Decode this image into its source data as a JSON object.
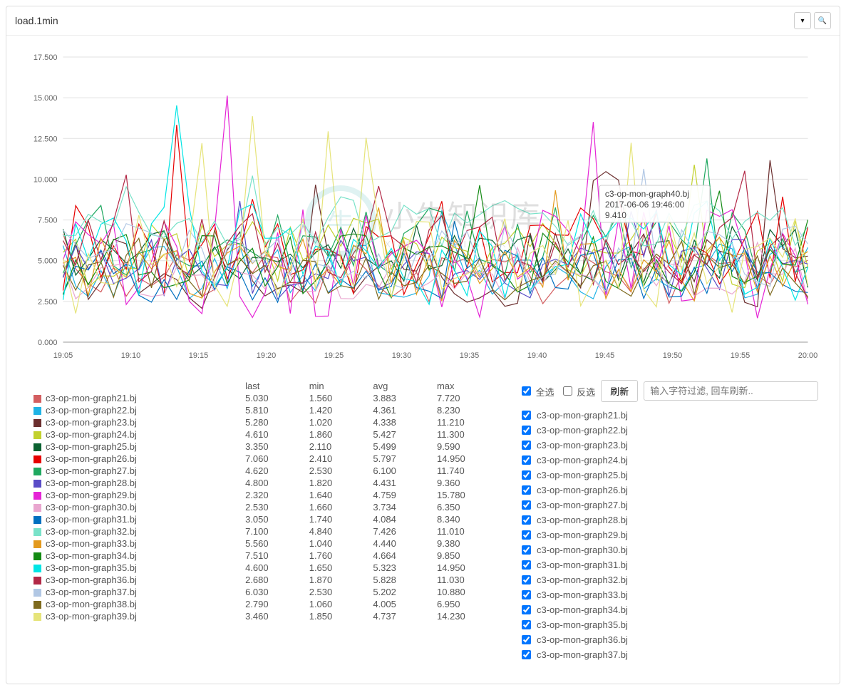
{
  "panel": {
    "title": "load.1min"
  },
  "chart": {
    "type": "line",
    "ylim": [
      0,
      17.5
    ],
    "ytick_step": 2.5,
    "yticks": [
      "0.000",
      "2.500",
      "5.000",
      "7.500",
      "10.000",
      "12.500",
      "15.000",
      "17.500"
    ],
    "xcats": [
      "19:05",
      "19:10",
      "19:15",
      "19:20",
      "19:25",
      "19:30",
      "19:35",
      "19:40",
      "19:45",
      "19:50",
      "19:55",
      "20:00"
    ],
    "grid_color": "#e0e0e0",
    "background_color": "#ffffff",
    "axis_font_size": 11,
    "watermark_title": "小牛知识库",
    "watermark_sub": "XIAO NIU ZHI SHI KU",
    "tooltip": {
      "line1": "c3-op-mon-graph40.bj",
      "line2": "2017-06-06 19:46:00",
      "line3": "9.410"
    }
  },
  "stats": {
    "headers": [
      "",
      "last",
      "min",
      "avg",
      "max"
    ],
    "rows": [
      {
        "color": "#d35e60",
        "name": "c3-op-mon-graph21.bj",
        "last": "5.030",
        "min": "1.560",
        "avg": "3.883",
        "max": "7.720"
      },
      {
        "color": "#1fb3e5",
        "name": "c3-op-mon-graph22.bj",
        "last": "5.810",
        "min": "1.420",
        "avg": "4.361",
        "max": "8.230"
      },
      {
        "color": "#6b2e2e",
        "name": "c3-op-mon-graph23.bj",
        "last": "5.280",
        "min": "1.020",
        "avg": "4.338",
        "max": "11.210"
      },
      {
        "color": "#c2d12e",
        "name": "c3-op-mon-graph24.bj",
        "last": "4.610",
        "min": "1.860",
        "avg": "5.427",
        "max": "11.300"
      },
      {
        "color": "#0b6231",
        "name": "c3-op-mon-graph25.bj",
        "last": "3.350",
        "min": "2.110",
        "avg": "5.499",
        "max": "9.590"
      },
      {
        "color": "#e60000",
        "name": "c3-op-mon-graph26.bj",
        "last": "7.060",
        "min": "2.410",
        "avg": "5.797",
        "max": "14.950"
      },
      {
        "color": "#1fa860",
        "name": "c3-op-mon-graph27.bj",
        "last": "4.620",
        "min": "2.530",
        "avg": "6.100",
        "max": "11.740"
      },
      {
        "color": "#5a4cc7",
        "name": "c3-op-mon-graph28.bj",
        "last": "4.800",
        "min": "1.820",
        "avg": "4.431",
        "max": "9.360"
      },
      {
        "color": "#e524d6",
        "name": "c3-op-mon-graph29.bj",
        "last": "2.320",
        "min": "1.640",
        "avg": "4.759",
        "max": "15.780"
      },
      {
        "color": "#e9a6cf",
        "name": "c3-op-mon-graph30.bj",
        "last": "2.530",
        "min": "1.660",
        "avg": "3.734",
        "max": "6.350"
      },
      {
        "color": "#0070c0",
        "name": "c3-op-mon-graph31.bj",
        "last": "3.050",
        "min": "1.740",
        "avg": "4.084",
        "max": "8.340"
      },
      {
        "color": "#79e2c9",
        "name": "c3-op-mon-graph32.bj",
        "last": "7.100",
        "min": "4.840",
        "avg": "7.426",
        "max": "11.010"
      },
      {
        "color": "#e39a1e",
        "name": "c3-op-mon-graph33.bj",
        "last": "5.560",
        "min": "1.040",
        "avg": "4.440",
        "max": "9.380"
      },
      {
        "color": "#138a13",
        "name": "c3-op-mon-graph34.bj",
        "last": "7.510",
        "min": "1.760",
        "avg": "4.664",
        "max": "9.850"
      },
      {
        "color": "#00e5e5",
        "name": "c3-op-mon-graph35.bj",
        "last": "4.600",
        "min": "1.650",
        "avg": "5.323",
        "max": "14.950"
      },
      {
        "color": "#b22846",
        "name": "c3-op-mon-graph36.bj",
        "last": "2.680",
        "min": "1.870",
        "avg": "5.828",
        "max": "11.030"
      },
      {
        "color": "#b1c7e4",
        "name": "c3-op-mon-graph37.bj",
        "last": "6.030",
        "min": "2.530",
        "avg": "5.202",
        "max": "10.880"
      },
      {
        "color": "#7e6a1e",
        "name": "c3-op-mon-graph38.bj",
        "last": "2.790",
        "min": "1.060",
        "avg": "4.005",
        "max": "6.950"
      },
      {
        "color": "#e6e47a",
        "name": "c3-op-mon-graph39.bj",
        "last": "3.460",
        "min": "1.850",
        "avg": "4.737",
        "max": "14.230"
      }
    ]
  },
  "filter": {
    "select_all": "全选",
    "invert": "反选",
    "refresh": "刷新",
    "placeholder": "输入字符过滤, 回车刷新..",
    "items": [
      "c3-op-mon-graph21.bj",
      "c3-op-mon-graph22.bj",
      "c3-op-mon-graph23.bj",
      "c3-op-mon-graph24.bj",
      "c3-op-mon-graph25.bj",
      "c3-op-mon-graph26.bj",
      "c3-op-mon-graph27.bj",
      "c3-op-mon-graph28.bj",
      "c3-op-mon-graph29.bj",
      "c3-op-mon-graph30.bj",
      "c3-op-mon-graph31.bj",
      "c3-op-mon-graph32.bj",
      "c3-op-mon-graph33.bj",
      "c3-op-mon-graph34.bj",
      "c3-op-mon-graph35.bj",
      "c3-op-mon-graph36.bj",
      "c3-op-mon-graph37.bj"
    ]
  }
}
